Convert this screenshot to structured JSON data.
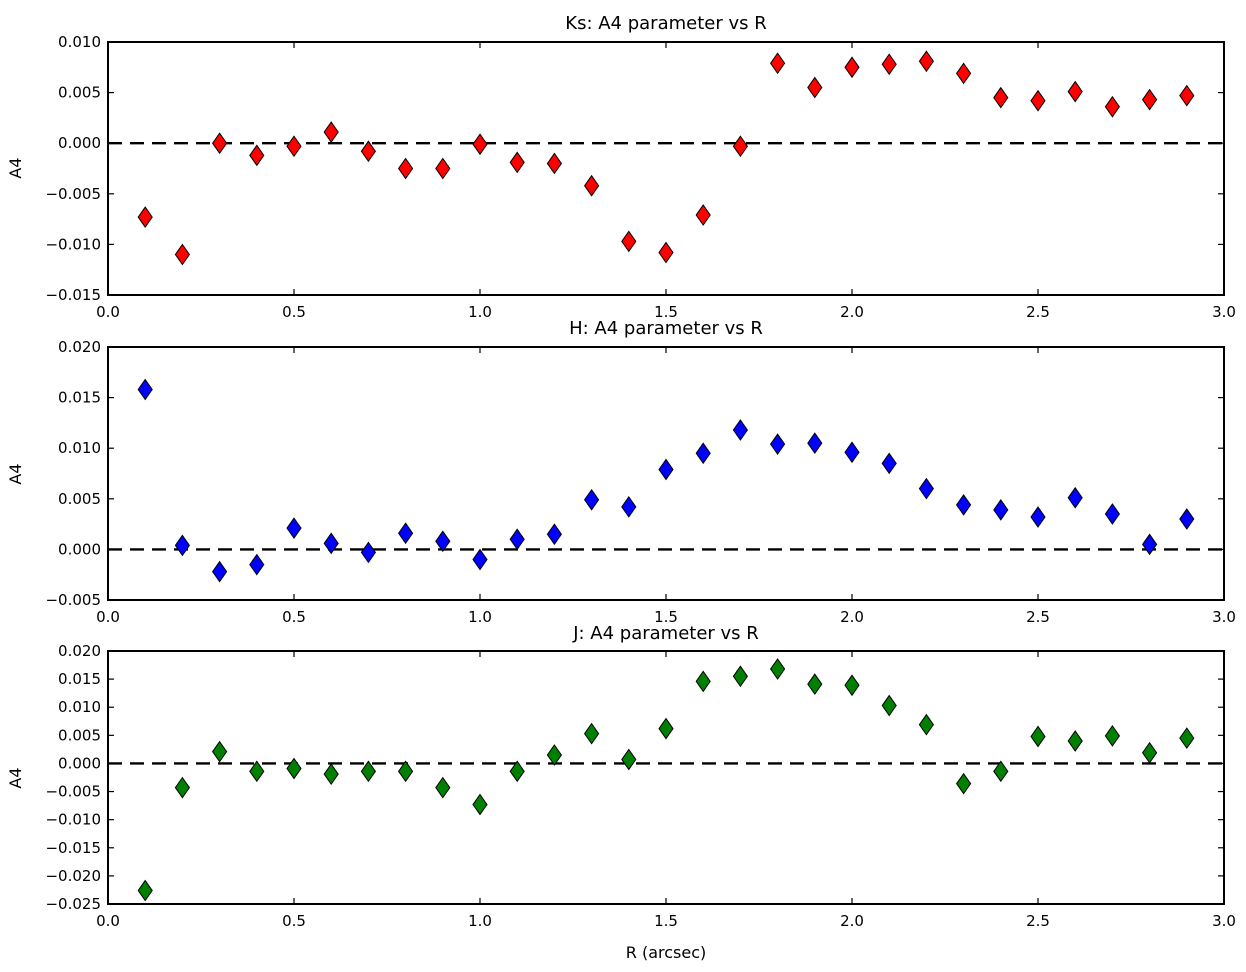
{
  "chart_data": [
    {
      "type": "scatter",
      "title": "Ks: A4 parameter vs R",
      "xlabel": "",
      "ylabel": "A4",
      "xlim": [
        0.0,
        3.0
      ],
      "ylim": [
        -0.015,
        0.01
      ],
      "xticks": [
        "0.0",
        "0.5",
        "1.0",
        "1.5",
        "2.0",
        "2.5",
        "3.0"
      ],
      "yticks": [
        "−0.015",
        "−0.010",
        "−0.005",
        "0.000",
        "0.005",
        "0.010"
      ],
      "marker": "diamond",
      "color": "#ff0000",
      "reference_line": {
        "y": 0.0,
        "style": "dashed"
      },
      "x": [
        0.1,
        0.2,
        0.3,
        0.4,
        0.5,
        0.6,
        0.7,
        0.8,
        0.9,
        1.0,
        1.1,
        1.2,
        1.3,
        1.4,
        1.5,
        1.6,
        1.7,
        1.8,
        1.9,
        2.0,
        2.1,
        2.2,
        2.3,
        2.4,
        2.5,
        2.6,
        2.7,
        2.8,
        2.9
      ],
      "y": [
        -0.0073,
        -0.011,
        0.0,
        -0.0012,
        -0.0003,
        0.0011,
        -0.0008,
        -0.0025,
        -0.0025,
        -0.0001,
        -0.0019,
        -0.002,
        -0.0042,
        -0.0097,
        -0.0108,
        -0.0071,
        -0.0003,
        0.0079,
        0.0055,
        0.0075,
        0.0078,
        0.0081,
        0.0069,
        0.0045,
        0.0042,
        0.0051,
        0.0036,
        0.0043,
        0.0047
      ]
    },
    {
      "type": "scatter",
      "title": "H: A4 parameter vs R",
      "xlabel": "",
      "ylabel": "A4",
      "xlim": [
        0.0,
        3.0
      ],
      "ylim": [
        -0.005,
        0.02
      ],
      "xticks": [
        "0.0",
        "0.5",
        "1.0",
        "1.5",
        "2.0",
        "2.5",
        "3.0"
      ],
      "yticks": [
        "−0.005",
        "0.000",
        "0.005",
        "0.010",
        "0.015",
        "0.020"
      ],
      "marker": "diamond",
      "color": "#0000ff",
      "reference_line": {
        "y": 0.0,
        "style": "dashed"
      },
      "x": [
        0.1,
        0.2,
        0.3,
        0.4,
        0.5,
        0.6,
        0.7,
        0.8,
        0.9,
        1.0,
        1.1,
        1.2,
        1.3,
        1.4,
        1.5,
        1.6,
        1.7,
        1.8,
        1.9,
        2.0,
        2.1,
        2.2,
        2.3,
        2.4,
        2.5,
        2.6,
        2.7,
        2.8,
        2.9
      ],
      "y": [
        0.0158,
        0.0004,
        -0.0022,
        -0.0015,
        0.0021,
        0.0006,
        -0.0003,
        0.0016,
        0.0008,
        -0.001,
        0.001,
        0.0015,
        0.0049,
        0.0042,
        0.0079,
        0.0095,
        0.0118,
        0.0104,
        0.0105,
        0.0096,
        0.0085,
        0.006,
        0.0044,
        0.0039,
        0.0032,
        0.0051,
        0.0035,
        0.0005,
        0.003
      ]
    },
    {
      "type": "scatter",
      "title": "J: A4 parameter vs R",
      "xlabel": "R (arcsec)",
      "ylabel": "A4",
      "xlim": [
        0.0,
        3.0
      ],
      "ylim": [
        -0.025,
        0.02
      ],
      "xticks": [
        "0.0",
        "0.5",
        "1.0",
        "1.5",
        "2.0",
        "2.5",
        "3.0"
      ],
      "yticks": [
        "−0.025",
        "−0.020",
        "−0.015",
        "−0.010",
        "−0.005",
        "0.000",
        "0.005",
        "0.010",
        "0.015",
        "0.020"
      ],
      "marker": "diamond",
      "color": "#008000",
      "reference_line": {
        "y": 0.0,
        "style": "dashed"
      },
      "x": [
        0.1,
        0.2,
        0.3,
        0.4,
        0.5,
        0.6,
        0.7,
        0.8,
        0.9,
        1.0,
        1.1,
        1.2,
        1.3,
        1.4,
        1.5,
        1.6,
        1.7,
        1.8,
        1.9,
        2.0,
        2.1,
        2.2,
        2.3,
        2.4,
        2.5,
        2.6,
        2.7,
        2.8,
        2.9
      ],
      "y": [
        -0.0226,
        -0.0043,
        0.0021,
        -0.0014,
        -0.0009,
        -0.0019,
        -0.0014,
        -0.0014,
        -0.0043,
        -0.0073,
        -0.0014,
        0.0015,
        0.0053,
        0.0007,
        0.0062,
        0.0146,
        0.0155,
        0.0168,
        0.0141,
        0.0139,
        0.0103,
        0.0069,
        -0.0036,
        -0.0014,
        0.0048,
        0.004,
        0.0049,
        0.0019,
        0.0045
      ]
    }
  ]
}
